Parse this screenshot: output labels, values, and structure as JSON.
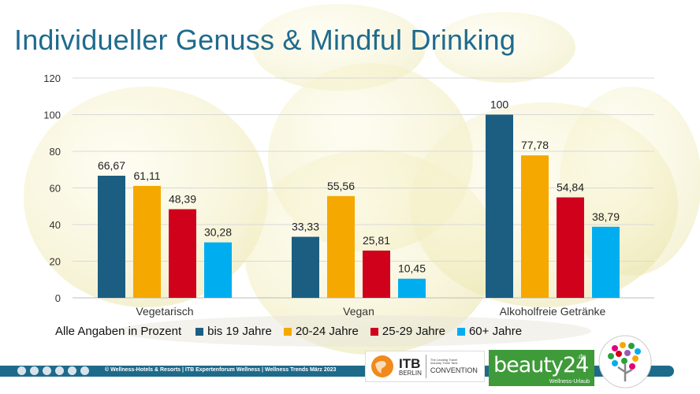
{
  "page_title": "Individueller Genuss & Mindful Drinking",
  "legend_note": "Alle Angaben in Prozent",
  "footer": {
    "text": "© Wellness-Hotels & Resorts | ITB Expertenforum Wellness | Wellness Trends März 2023"
  },
  "logos": {
    "itb_name": "ITB",
    "itb_city": "BERLIN",
    "itb_tagline": "The Leading Travel Industry Think Tank",
    "itb_convention": "CONVENTION",
    "beauty_brand": "beauty24",
    "beauty_tld": ".de",
    "beauty_sub": "Wellness-Urlaub"
  },
  "colors": {
    "title": "#1f6b8e",
    "series": [
      "#1b5e82",
      "#f5a800",
      "#d0021b",
      "#00aeef"
    ]
  },
  "chart_data": {
    "type": "bar",
    "categories": [
      "Vegetarisch",
      "Vegan",
      "Alkoholfreie Getränke"
    ],
    "series": [
      {
        "name": "bis 19 Jahre",
        "values": [
          66.67,
          33.33,
          100
        ]
      },
      {
        "name": "20-24 Jahre",
        "values": [
          61.11,
          55.56,
          77.78
        ]
      },
      {
        "name": "25-29 Jahre",
        "values": [
          48.39,
          25.81,
          54.84
        ]
      },
      {
        "name": "60+ Jahre",
        "values": [
          30.28,
          10.45,
          38.79
        ]
      }
    ],
    "value_labels": [
      [
        "66,67",
        "33,33",
        "100"
      ],
      [
        "61,11",
        "55,56",
        "77,78"
      ],
      [
        "48,39",
        "25,81",
        "54,84"
      ],
      [
        "30,28",
        "10,45",
        "38,79"
      ]
    ],
    "ylim": [
      0,
      120
    ],
    "yticks": [
      0,
      20,
      40,
      60,
      80,
      100,
      120
    ],
    "grid": true,
    "legend": "bottom"
  }
}
